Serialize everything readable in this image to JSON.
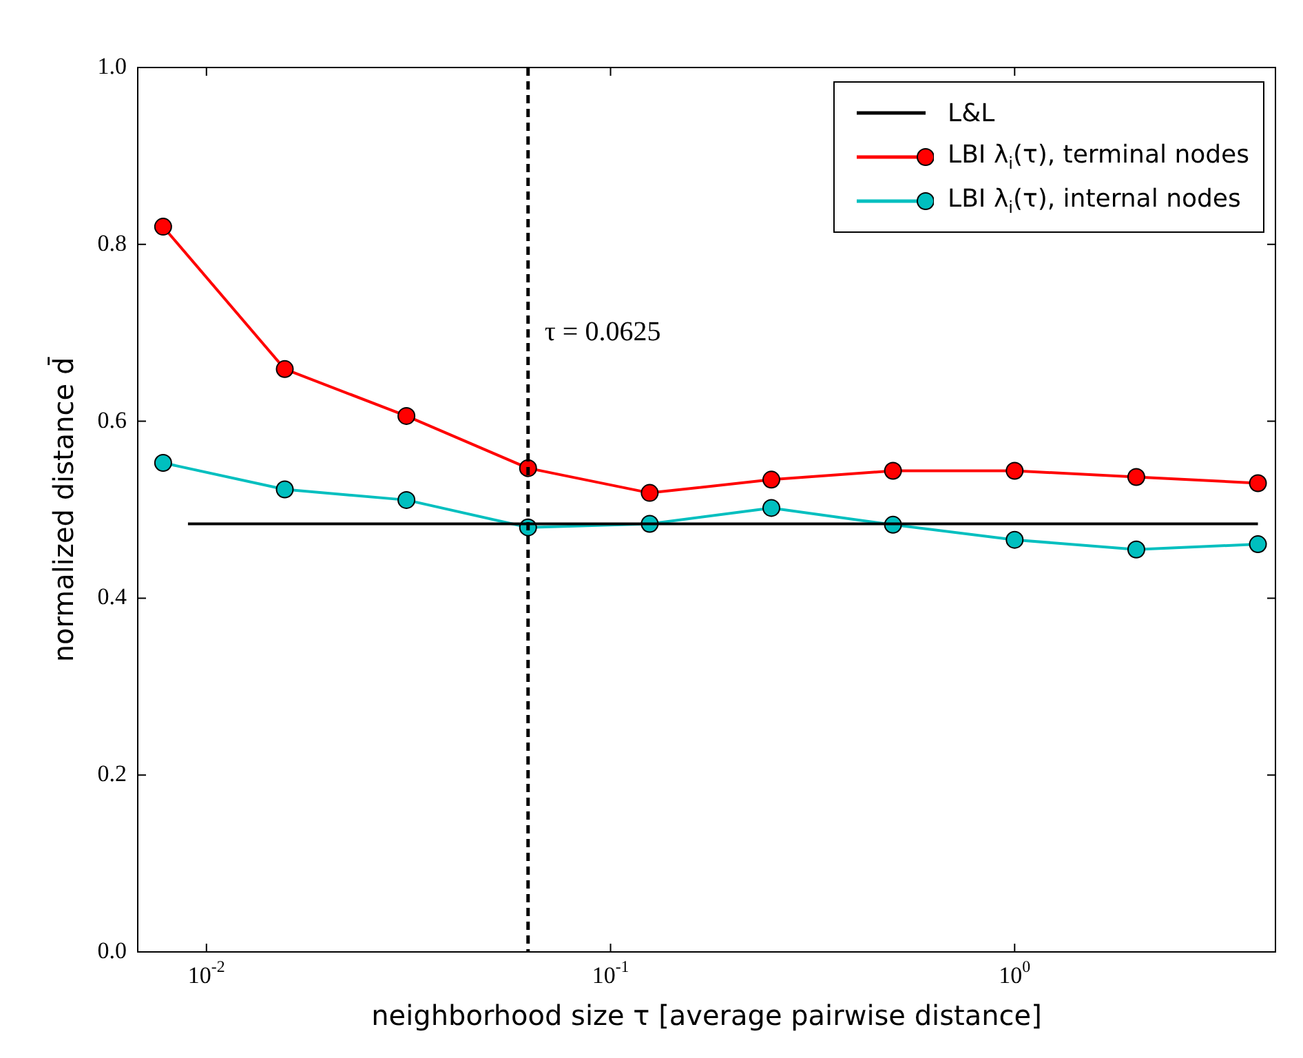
{
  "chart_data": {
    "type": "line",
    "xlabel": "neighborhood size τ [average pairwise distance]",
    "ylabel": "normalized distance d̄",
    "log": "x",
    "grid": false,
    "legend": "top right",
    "marker": "circle",
    "xlim": [
      0.00676,
      4.42
    ],
    "ylim": [
      0,
      1
    ],
    "xticks": [
      {
        "value": 0.01,
        "label": "10$^{-2}$"
      },
      {
        "value": 0.1,
        "label": "10$^{-1}$"
      },
      {
        "value": 1,
        "label": "10$^{0}$"
      }
    ],
    "yticks": [
      {
        "value": 0,
        "label": "0.0"
      },
      {
        "value": 0.2,
        "label": "0.2"
      },
      {
        "value": 0.4,
        "label": "0.4"
      },
      {
        "value": 0.6,
        "label": "0.6"
      },
      {
        "value": 0.8,
        "label": "0.8"
      },
      {
        "value": 1,
        "label": "1.0"
      }
    ],
    "series": [
      {
        "name": "L&L",
        "color": "#000000",
        "marker": "none",
        "x": [
          0.009,
          4
        ],
        "values": [
          0.484,
          0.484
        ]
      },
      {
        "name": "LBI λ$_{i}$(τ), terminal nodes",
        "color": "#ff0000",
        "x": [
          0.0078125,
          0.015625,
          0.03125,
          0.0625,
          0.125,
          0.25,
          0.5,
          1,
          2,
          4
        ],
        "values": [
          0.82,
          0.659,
          0.606,
          0.547,
          0.519,
          0.534,
          0.544,
          0.544,
          0.537,
          0.53
        ]
      },
      {
        "name": "LBI λ$_{i}$(τ), internal nodes",
        "color": "#00bfbf",
        "x": [
          0.0078125,
          0.015625,
          0.03125,
          0.0625,
          0.125,
          0.25,
          0.5,
          1,
          2,
          4
        ],
        "values": [
          0.553,
          0.523,
          0.511,
          0.48,
          0.484,
          0.502,
          0.483,
          0.466,
          0.455,
          0.461
        ]
      }
    ],
    "ref_lines": [
      {
        "axis": "x",
        "value": 0.0625,
        "color": "#000000",
        "line_style": "dashed"
      }
    ],
    "annotations": [
      {
        "text": "τ = 0.0625",
        "x": 0.0625,
        "y": 0.7
      }
    ]
  }
}
